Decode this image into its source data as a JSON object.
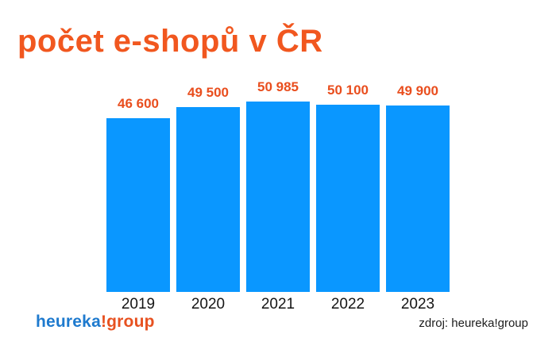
{
  "title": "počet e-shopů v ČR",
  "chart_data": {
    "type": "bar",
    "title": "počet e-shopů v ČR",
    "categories": [
      "2019",
      "2020",
      "2021",
      "2022",
      "2023"
    ],
    "values": [
      46600,
      49500,
      50985,
      50100,
      49900
    ],
    "value_labels": [
      "46 600",
      "49 500",
      "50 985",
      "50 100",
      "49 900"
    ],
    "xlabel": "",
    "ylabel": "",
    "ylim": [
      0,
      50985
    ],
    "grid": false,
    "legend": false,
    "bar_color": "#0a97ff",
    "value_label_color": "#e94e1e",
    "category_label_color": "#151515"
  },
  "footer": {
    "logo_part_blue": "heureka",
    "logo_part_orange": "!group",
    "source": "zdroj: heureka!group"
  },
  "colors": {
    "background": "#ffffff",
    "title": "#f1571f",
    "bar": "#0a97ff",
    "value_label": "#e94e1e",
    "logo_blue": "#1e7ace",
    "logo_orange": "#e75120"
  }
}
